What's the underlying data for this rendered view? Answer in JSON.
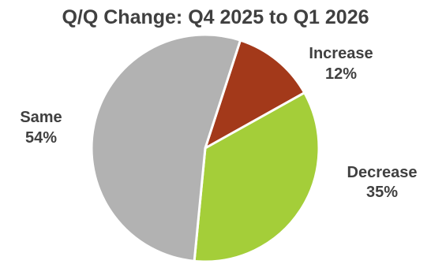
{
  "chart_data": {
    "type": "pie",
    "title": "Q/Q Change: Q4 2025 to Q1 2026",
    "slices": [
      {
        "label": "Increase",
        "value": 12,
        "value_label": "12%",
        "color": "#A3391A"
      },
      {
        "label": "Decrease",
        "value": 35,
        "value_label": "35%",
        "color": "#A4CE39"
      },
      {
        "label": "Same",
        "value": 54,
        "value_label": "54%",
        "color": "#B2B2B2"
      }
    ],
    "legend": "none",
    "slice_border_color": "#FFFFFF"
  }
}
